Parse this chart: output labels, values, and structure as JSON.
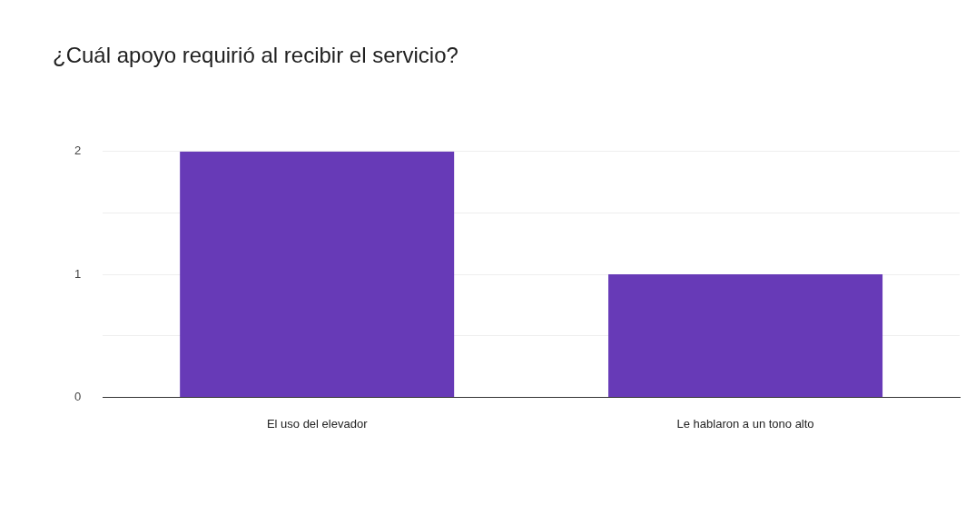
{
  "chart_data": {
    "type": "bar",
    "title": "¿Cuál apoyo requirió al recibir el servicio?",
    "categories": [
      "El uso del elevador",
      "Le hablaron a un tono alto"
    ],
    "values": [
      2,
      1
    ],
    "color": "#673ab7",
    "ylim": [
      0,
      2
    ],
    "yticks": [
      0,
      {
        "value": 0.5,
        "label": null
      },
      1,
      {
        "value": 1.5,
        "label": null
      },
      2
    ],
    "grid": "y"
  }
}
